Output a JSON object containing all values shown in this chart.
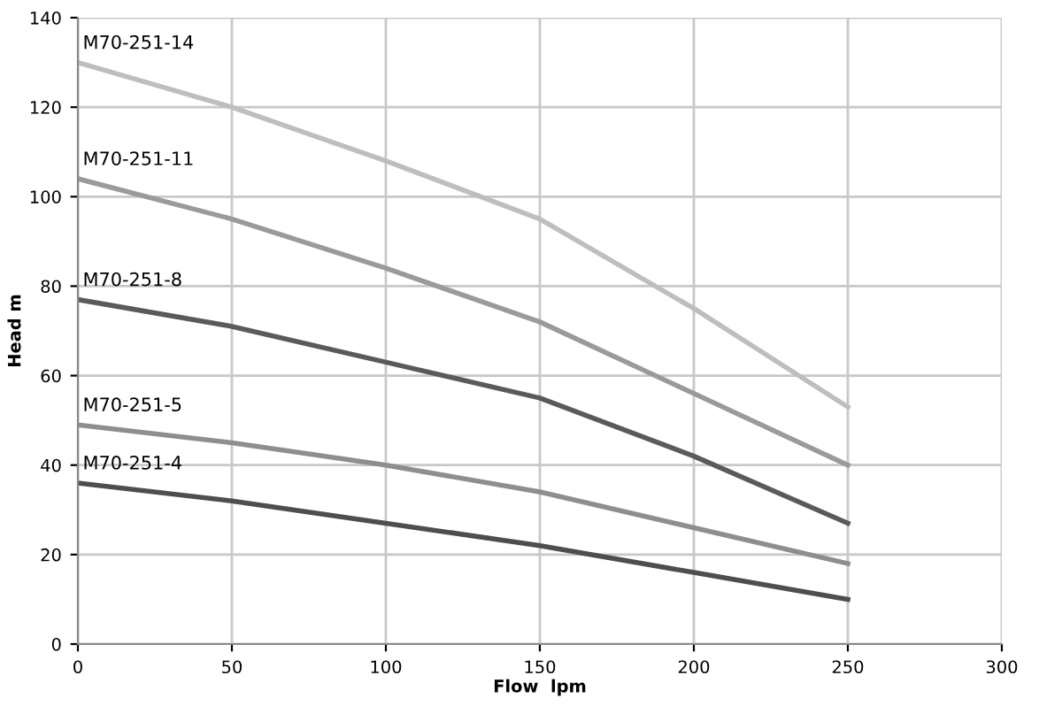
{
  "chart_data": {
    "type": "line",
    "xlabel": "Flow  lpm",
    "ylabel": "Head m",
    "x": [
      0,
      50,
      100,
      150,
      200,
      250
    ],
    "series": [
      {
        "name": "M70-251-14",
        "color": "#bebebe",
        "values": [
          130,
          120,
          108,
          95,
          75,
          53
        ]
      },
      {
        "name": "M70-251-11",
        "color": "#9a9a9a",
        "values": [
          104,
          95,
          84,
          72,
          56,
          40
        ]
      },
      {
        "name": "M70-251-8",
        "color": "#5a5a5a",
        "values": [
          77,
          71,
          63,
          55,
          42,
          27
        ]
      },
      {
        "name": "M70-251-5",
        "color": "#8e8e8e",
        "values": [
          49,
          45,
          40,
          34,
          26,
          18
        ]
      },
      {
        "name": "M70-251-4",
        "color": "#4e4e4e",
        "values": [
          36,
          32,
          27,
          22,
          16,
          10
        ]
      }
    ],
    "xlim": [
      0,
      300
    ],
    "xticks": [
      0,
      50,
      100,
      150,
      200,
      250,
      300
    ],
    "ylim": [
      0,
      140
    ],
    "yticks": [
      0,
      20,
      40,
      60,
      80,
      100,
      120,
      140
    ],
    "grid": true,
    "legend": false,
    "marker": "none",
    "line_style": "solid"
  }
}
